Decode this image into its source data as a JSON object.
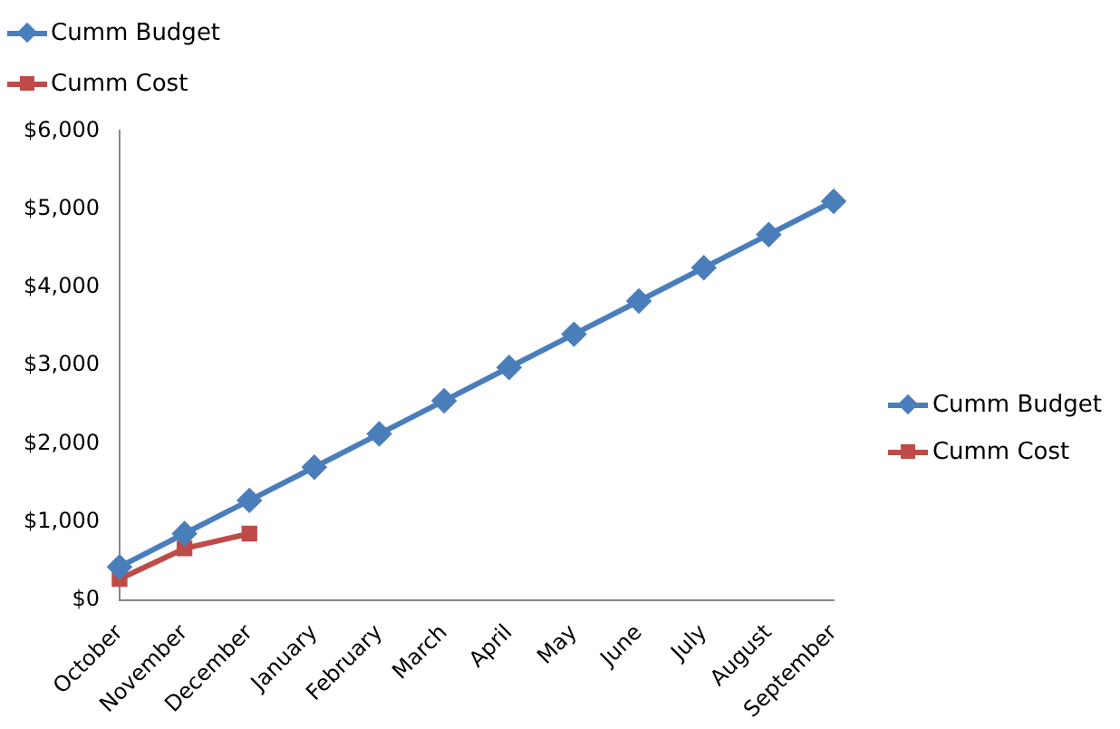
{
  "chart_data": {
    "type": "line",
    "categories": [
      "October",
      "November",
      "December",
      "January",
      "February",
      "March",
      "April",
      "May",
      "June",
      "July",
      "August",
      "September"
    ],
    "series": [
      {
        "name": "Cumm Budget",
        "color": "#4a7ebb",
        "marker": "diamond",
        "values": [
          425,
          850,
          1275,
          1700,
          2125,
          2550,
          2975,
          3400,
          3825,
          4250,
          4675,
          5100
        ]
      },
      {
        "name": "Cumm Cost",
        "color": "#be4b48",
        "marker": "square",
        "values": [
          270,
          660,
          850,
          null,
          null,
          null,
          null,
          null,
          null,
          null,
          null,
          null
        ]
      }
    ],
    "ylim": [
      0,
      6000
    ],
    "yticks": [
      {
        "value": 0,
        "label": "$0"
      },
      {
        "value": 1000,
        "label": "$1,000"
      },
      {
        "value": 2000,
        "label": "$2,000"
      },
      {
        "value": 3000,
        "label": "$3,000"
      },
      {
        "value": 4000,
        "label": "$4,000"
      },
      {
        "value": 5000,
        "label": "$5,000"
      },
      {
        "value": 6000,
        "label": "$6,000"
      }
    ],
    "grid": false,
    "legend": "right",
    "line_style": "solid"
  }
}
